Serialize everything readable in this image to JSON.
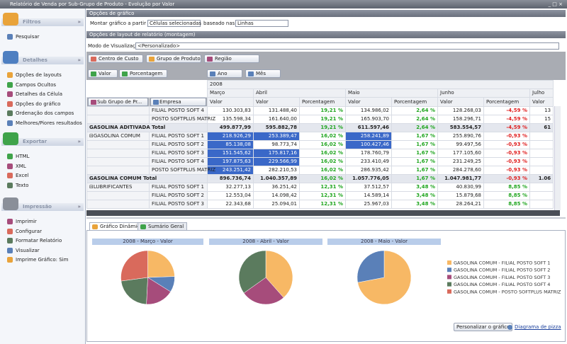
{
  "window_title": "Relatório de Venda por Sub-Grupo de Produto - Evolução por Valor",
  "sidebar": [
    {
      "title": "Filtros",
      "items": [
        "Pesquisar"
      ]
    },
    {
      "title": "Detalhes",
      "items": [
        "Opções de layouts",
        "Campos Ocultos",
        "Detalhes da Célula",
        "Opções do gráfico",
        "Ordenação dos campos",
        "Melhores/Piores resultados"
      ]
    },
    {
      "title": "Exportar",
      "items": [
        "HTML",
        "XML",
        "Excel",
        "Texto"
      ]
    },
    {
      "title": "Impressão",
      "items": [
        "Imprimir",
        "Configurar",
        "Formatar Relatório",
        "Visualizar",
        "Imprime Gráfico: Sim"
      ]
    }
  ],
  "chart_options": {
    "header": "Opções de gráfico",
    "build_from_label": "Montar gráfico a partir de:",
    "build_from_value": "Células selecionadas",
    "based_on_label": "baseado nas:",
    "based_on_value": "Linhas"
  },
  "layout_options": {
    "header": "Opções de layout de relatório (montagem)",
    "view_mode_label": "Modo de Visualização",
    "view_mode_value": "<Personalizado>"
  },
  "filter_fields": [
    "Centro de Custo",
    "Grupo de Produto",
    "Região"
  ],
  "data_fields": [
    "Valor",
    "Porcentagem"
  ],
  "column_fields": [
    "Ano",
    "Mês"
  ],
  "row_fields": [
    "Sub Grupo de Pr...",
    "Empresa"
  ],
  "pivot": {
    "year": "2008",
    "months": [
      "Março",
      "Abril",
      "Maio",
      "Junho",
      "Julho"
    ],
    "measures": [
      "Valor",
      "Valor",
      "Porcentagem",
      "Valor",
      "Porcentagem",
      "Valor",
      "Porcentagem",
      "Valor",
      "Porcentagem"
    ],
    "rows": [
      {
        "store": "FILIAL POSTO SOFT 4",
        "cells": [
          "130.303,83",
          "131.488,40",
          "19,21 %",
          "134.986,02",
          "2,64 %",
          "128.268,03",
          "-4,59 %",
          "13"
        ]
      },
      {
        "store": "POSTO SOFTPLUS MATRIZ",
        "cells": [
          "135.598,34",
          "161.640,00",
          "19,21 %",
          "165.903,70",
          "2,64 %",
          "158.296,71",
          "-4,59 %",
          "15"
        ]
      },
      {
        "label": "GASOLINA ADITIVADA Total",
        "cells": [
          "499.877,99",
          "595.882,78",
          "19,21 %",
          "611.597,46",
          "2,64 %",
          "583.554,57",
          "-4,59 %",
          "61"
        ]
      },
      {
        "group": "GASOLINA COMUM",
        "store": "FILIAL POSTO SOFT 1",
        "cells": [
          "218.926,29",
          "253.389,47",
          "16,02 %",
          "258.241,89",
          "1,67 %",
          "255.890,76",
          "-0,93 %",
          null
        ],
        "selected": [
          0,
          1,
          3
        ]
      },
      {
        "store": "FILIAL POSTO SOFT 2",
        "cells": [
          "85.138,08",
          "98.773,74",
          "16,02 %",
          "100.427,46",
          "1,67 %",
          "99.497,56",
          "-0,93 %",
          null
        ],
        "selected": [
          0,
          3
        ]
      },
      {
        "store": "FILIAL POSTO SOFT 3",
        "cells": [
          "151.545,62",
          "175.817,16",
          "16,02 %",
          "178.760,79",
          "1,67 %",
          "177.105,60",
          "-0,93 %",
          null
        ],
        "selected": [
          0,
          1
        ]
      },
      {
        "store": "FILIAL POSTO SOFT 4",
        "cells": [
          "197.875,63",
          "229.566,99",
          "16,02 %",
          "233.410,49",
          "1,67 %",
          "231.249,25",
          "-0,93 %",
          null
        ],
        "selected": [
          0,
          1
        ]
      },
      {
        "store": "POSTO SOFTPLUS MATRIZ",
        "cells": [
          "243.251,42",
          "282.210,53",
          "16,02 %",
          "286.935,42",
          "1,67 %",
          "284.278,60",
          "-0,93 %",
          null
        ],
        "selected": [
          0
        ]
      },
      {
        "label": "GASOLINA COMUM Total",
        "cells": [
          "896.736,74",
          "1.040.357,89",
          "16,02 %",
          "1.057.776,05",
          "1,67 %",
          "1.047.981,77",
          "-0,93 %",
          "1.06"
        ]
      },
      {
        "group": "LUBRIFICANTES",
        "store": "FILIAL POSTO SOFT 1",
        "cells": [
          "32.277,13",
          "36.251,42",
          "12,31 %",
          "37.512,57",
          "3,48 %",
          "40.830,99",
          "8,85 %",
          null
        ]
      },
      {
        "store": "FILIAL POSTO SOFT 2",
        "cells": [
          "12.553,04",
          "14.098,42",
          "12,31 %",
          "14.589,14",
          "3,48 %",
          "15.879,68",
          "8,85 %",
          null
        ]
      },
      {
        "store": "FILIAL POSTO SOFT 3",
        "cells": [
          "22.343,68",
          "25.094,01",
          "12,31 %",
          "25.967,03",
          "3,48 %",
          "28.264,21",
          "8,85 %",
          null
        ]
      }
    ]
  },
  "tabs": [
    "Gráfico Dinâmico",
    "Sumário Geral"
  ],
  "pie_legend": [
    {
      "name": "GASOLINA COMUM - FILIAL POSTO SOFT 1",
      "color": "#f7b865"
    },
    {
      "name": "GASOLINA COMUM - FILIAL POSTO SOFT 2",
      "color": "#5a80b8"
    },
    {
      "name": "GASOLINA COMUM - FILIAL POSTO SOFT 3",
      "color": "#a64c7b"
    },
    {
      "name": "GASOLINA COMUM - FILIAL POSTO SOFT 4",
      "color": "#5b7b5e"
    },
    {
      "name": "GASOLINA COMUM - POSTO SOFTPLUS MATRIZ",
      "color": "#d96a5c"
    }
  ],
  "chart_data": [
    {
      "type": "pie",
      "title": "2008 - Março - Valor",
      "values": [
        218926.29,
        85138.08,
        151545.62,
        197875.63,
        243251.42
      ]
    },
    {
      "type": "pie",
      "title": "2008 - Abril - Valor",
      "values": [
        253389.47,
        null,
        175817.16,
        229566.99,
        null
      ]
    },
    {
      "type": "pie",
      "title": "2008 - Maio - Valor",
      "values": [
        258241.89,
        100427.46,
        null,
        null,
        null
      ]
    }
  ],
  "buttons": {
    "customize": "Personalizar o gráfico",
    "diagram": "Diagrama de pizza"
  }
}
